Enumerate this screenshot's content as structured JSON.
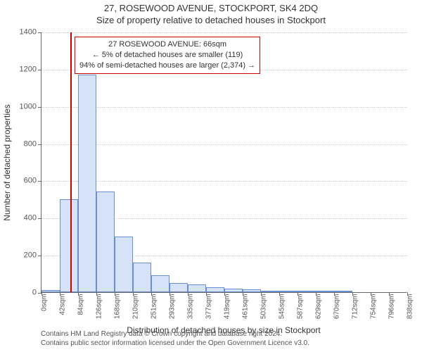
{
  "title": "27, ROSEWOOD AVENUE, STOCKPORT, SK4 2DQ",
  "subtitle": "Size of property relative to detached houses in Stockport",
  "chart": {
    "type": "histogram",
    "ylabel": "Number of detached properties",
    "xlabel": "Distribution of detached houses by size in Stockport",
    "ylim_max": 1400,
    "ytick_step": 200,
    "bar_fill": "#d6e2f7",
    "bar_stroke": "#6a8fd0",
    "grid_color": "#cccccc",
    "axis_color": "#666666",
    "background_color": "#ffffff",
    "marker": {
      "value_sqm": 66,
      "color": "#cc0000"
    },
    "x_ticks": [
      {
        "v": 0,
        "label": "0sqm"
      },
      {
        "v": 42,
        "label": "42sqm"
      },
      {
        "v": 84,
        "label": "84sqm"
      },
      {
        "v": 126,
        "label": "126sqm"
      },
      {
        "v": 168,
        "label": "168sqm"
      },
      {
        "v": 210,
        "label": "210sqm"
      },
      {
        "v": 251,
        "label": "251sqm"
      },
      {
        "v": 293,
        "label": "293sqm"
      },
      {
        "v": 335,
        "label": "335sqm"
      },
      {
        "v": 377,
        "label": "377sqm"
      },
      {
        "v": 419,
        "label": "419sqm"
      },
      {
        "v": 461,
        "label": "461sqm"
      },
      {
        "v": 503,
        "label": "503sqm"
      },
      {
        "v": 545,
        "label": "545sqm"
      },
      {
        "v": 587,
        "label": "587sqm"
      },
      {
        "v": 629,
        "label": "629sqm"
      },
      {
        "v": 670,
        "label": "670sqm"
      },
      {
        "v": 712,
        "label": "712sqm"
      },
      {
        "v": 754,
        "label": "754sqm"
      },
      {
        "v": 796,
        "label": "796sqm"
      },
      {
        "v": 838,
        "label": "838sqm"
      }
    ],
    "x_domain_max": 838,
    "bars": [
      {
        "x0": 0,
        "x1": 42,
        "count": 10
      },
      {
        "x0": 42,
        "x1": 84,
        "count": 500
      },
      {
        "x0": 84,
        "x1": 126,
        "count": 1170
      },
      {
        "x0": 126,
        "x1": 168,
        "count": 540
      },
      {
        "x0": 168,
        "x1": 210,
        "count": 300
      },
      {
        "x0": 210,
        "x1": 251,
        "count": 160
      },
      {
        "x0": 251,
        "x1": 293,
        "count": 90
      },
      {
        "x0": 293,
        "x1": 335,
        "count": 50
      },
      {
        "x0": 335,
        "x1": 377,
        "count": 40
      },
      {
        "x0": 377,
        "x1": 419,
        "count": 25
      },
      {
        "x0": 419,
        "x1": 461,
        "count": 20
      },
      {
        "x0": 461,
        "x1": 503,
        "count": 15
      },
      {
        "x0": 503,
        "x1": 545,
        "count": 3
      },
      {
        "x0": 545,
        "x1": 587,
        "count": 2
      },
      {
        "x0": 587,
        "x1": 629,
        "count": 2
      },
      {
        "x0": 629,
        "x1": 670,
        "count": 1
      },
      {
        "x0": 670,
        "x1": 712,
        "count": 1
      }
    ],
    "info_box": {
      "border_color": "#cc0000",
      "line1": "27 ROSEWOOD AVENUE: 66sqm",
      "line2": "← 5% of detached houses are smaller (119)",
      "line3": "94% of semi-detached houses are larger (2,374) →"
    }
  },
  "footer": {
    "line1": "Contains HM Land Registry data © Crown copyright and database right 2024.",
    "line2": "Contains public sector information licensed under the Open Government Licence v3.0."
  }
}
